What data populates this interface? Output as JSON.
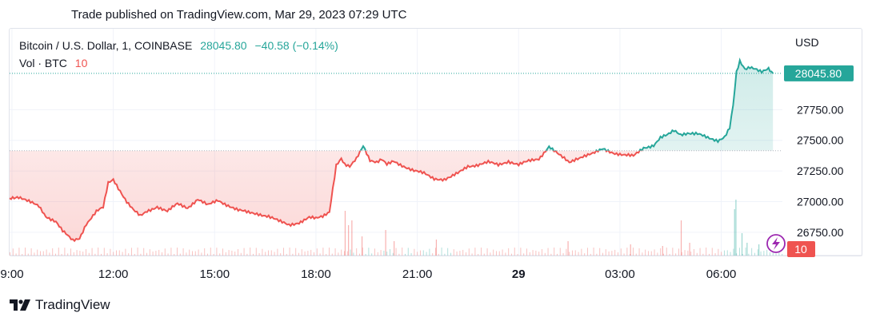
{
  "published_text": "Trade published on TradingView.com, Mar 29, 2023 07:29 UTC",
  "legend": {
    "symbol": "Bitcoin / U.S. Dollar, 1, COINBASE",
    "price": "28045.80",
    "change": "−40.58 (−0.14%)",
    "volume_label": "Vol · BTC",
    "volume_value": "10"
  },
  "brand": "TradingView",
  "icons": {
    "brand_logo": "tradingview-logo-icon",
    "lightning": "lightning-icon"
  },
  "colors": {
    "up": "#26a69a",
    "down": "#ef5350",
    "lightning": "#9c27b0"
  },
  "chart_data": {
    "type": "line",
    "symbol": "Bitcoin / U.S. Dollar, 1, COINBASE",
    "currency_label": "USD",
    "baseline": 27415,
    "last_price": 28045.8,
    "last_price_label": "28045.80",
    "volume_badge": "10",
    "ylim": [
      26560,
      28410
    ],
    "y_ticks": [
      26750,
      27000,
      27250,
      27500,
      27750
    ],
    "y_tick_labels": [
      "26750.00",
      "27000.00",
      "27250.00",
      "27500.00",
      "27750.00"
    ],
    "x_ticks": [
      {
        "t": 9,
        "label": "9:00",
        "bold": false
      },
      {
        "t": 12,
        "label": "12:00",
        "bold": false
      },
      {
        "t": 15,
        "label": "15:00",
        "bold": false
      },
      {
        "t": 18,
        "label": "18:00",
        "bold": false
      },
      {
        "t": 21,
        "label": "21:00",
        "bold": false
      },
      {
        "t": 24,
        "label": "29",
        "bold": true
      },
      {
        "t": 27,
        "label": "03:00",
        "bold": false
      },
      {
        "t": 30,
        "label": "06:00",
        "bold": false
      }
    ],
    "xlim": [
      8.93,
      31.81
    ],
    "series": [
      {
        "x": [
          8.93,
          9.2,
          9.5,
          9.8,
          10.0,
          10.3,
          10.5,
          10.8,
          11.0,
          11.2,
          11.5,
          11.7,
          11.85,
          12.0,
          12.2,
          12.4,
          12.6,
          12.8,
          13.0,
          13.3,
          13.6,
          13.9,
          14.2,
          14.5,
          14.8,
          15.1,
          15.4,
          15.7,
          16.0,
          16.3,
          16.6,
          16.9,
          17.2,
          17.5,
          17.8,
          18.0,
          18.2,
          18.4,
          18.6,
          18.75,
          18.85,
          19.0,
          19.2,
          19.4,
          19.6,
          19.8,
          19.95,
          20.1,
          20.3,
          20.6,
          20.9,
          21.2,
          21.5,
          21.8,
          22.0,
          22.2,
          22.5,
          22.8,
          23.1,
          23.4,
          23.7,
          24.0,
          24.3,
          24.6,
          24.9,
          25.2,
          25.5,
          25.7,
          25.9,
          26.2,
          26.5,
          26.8,
          27.1,
          27.4,
          27.7,
          28.0,
          28.2,
          28.4,
          28.6,
          28.8,
          29.0,
          29.3,
          29.6,
          29.9,
          30.1,
          30.25,
          30.35,
          30.45,
          30.55,
          30.7,
          30.85,
          31.0,
          31.2,
          31.4,
          31.53
        ],
        "y": [
          27020,
          27040,
          27000,
          26960,
          26880,
          26840,
          26760,
          26680,
          26700,
          26820,
          26920,
          26950,
          27150,
          27180,
          27090,
          27000,
          26930,
          26880,
          26920,
          26960,
          26920,
          26980,
          26950,
          27020,
          26970,
          27010,
          26970,
          26930,
          26910,
          26900,
          26880,
          26840,
          26810,
          26830,
          26870,
          26860,
          26880,
          26920,
          27300,
          27350,
          27300,
          27280,
          27350,
          27460,
          27340,
          27320,
          27340,
          27300,
          27330,
          27290,
          27250,
          27230,
          27190,
          27180,
          27200,
          27230,
          27290,
          27300,
          27320,
          27300,
          27330,
          27300,
          27330,
          27350,
          27450,
          27380,
          27320,
          27350,
          27370,
          27390,
          27430,
          27400,
          27380,
          27370,
          27440,
          27460,
          27520,
          27540,
          27580,
          27550,
          27560,
          27550,
          27520,
          27500,
          27530,
          27600,
          27780,
          28050,
          28140,
          28080,
          28100,
          28090,
          28060,
          28080,
          28045.8
        ]
      }
    ],
    "volume": [
      {
        "t": 18.85,
        "v": 140
      },
      {
        "t": 18.95,
        "v": 95
      },
      {
        "t": 19.05,
        "v": 110
      },
      {
        "t": 19.35,
        "v": 60
      },
      {
        "t": 20.05,
        "v": 80
      },
      {
        "t": 20.3,
        "v": 45
      },
      {
        "t": 21.55,
        "v": 50
      },
      {
        "t": 25.45,
        "v": 45
      },
      {
        "t": 27.3,
        "v": 35
      },
      {
        "t": 28.25,
        "v": 30
      },
      {
        "t": 28.8,
        "v": 110
      },
      {
        "t": 29.05,
        "v": 40
      },
      {
        "t": 30.38,
        "v": 145
      },
      {
        "t": 30.42,
        "v": 175
      },
      {
        "t": 30.6,
        "v": 70
      },
      {
        "t": 30.75,
        "v": 40
      },
      {
        "t": 31.1,
        "v": 35
      }
    ],
    "grid": true,
    "legend_position": "top-left"
  }
}
